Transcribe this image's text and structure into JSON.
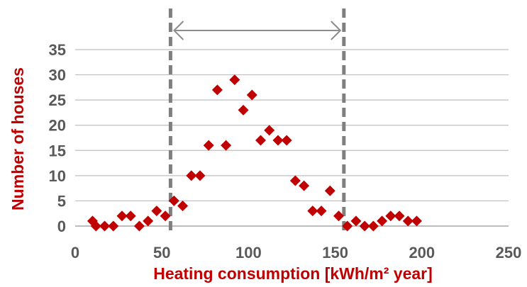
{
  "chart_data": {
    "type": "scatter",
    "title": "",
    "xlabel": "Heating consumption  [kWh/m² year]",
    "ylabel": "Number of houses",
    "xlim": [
      0,
      250
    ],
    "ylim": [
      0,
      35
    ],
    "x_ticks": [
      0,
      50,
      100,
      150,
      200,
      250
    ],
    "y_ticks": [
      0,
      5,
      10,
      15,
      20,
      25,
      30,
      35
    ],
    "grid": "horizontal",
    "legend": "none",
    "marker": "diamond",
    "marker_color": "#c00000",
    "points": [
      {
        "x": 10,
        "y": 1
      },
      {
        "x": 12,
        "y": 0
      },
      {
        "x": 17,
        "y": 0
      },
      {
        "x": 22,
        "y": 0
      },
      {
        "x": 27,
        "y": 2
      },
      {
        "x": 32,
        "y": 2
      },
      {
        "x": 37,
        "y": 0
      },
      {
        "x": 42,
        "y": 1
      },
      {
        "x": 47,
        "y": 3
      },
      {
        "x": 52,
        "y": 2
      },
      {
        "x": 57,
        "y": 5
      },
      {
        "x": 62,
        "y": 4
      },
      {
        "x": 67,
        "y": 10
      },
      {
        "x": 72,
        "y": 10
      },
      {
        "x": 77,
        "y": 16
      },
      {
        "x": 82,
        "y": 27
      },
      {
        "x": 87,
        "y": 16
      },
      {
        "x": 92,
        "y": 29
      },
      {
        "x": 97,
        "y": 23
      },
      {
        "x": 102,
        "y": 26
      },
      {
        "x": 107,
        "y": 17
      },
      {
        "x": 112,
        "y": 19
      },
      {
        "x": 117,
        "y": 17
      },
      {
        "x": 122,
        "y": 17
      },
      {
        "x": 127,
        "y": 9
      },
      {
        "x": 132,
        "y": 8
      },
      {
        "x": 137,
        "y": 3
      },
      {
        "x": 142,
        "y": 3
      },
      {
        "x": 147,
        "y": 7
      },
      {
        "x": 152,
        "y": 2
      },
      {
        "x": 157,
        "y": 0
      },
      {
        "x": 162,
        "y": 1
      },
      {
        "x": 167,
        "y": 0
      },
      {
        "x": 172,
        "y": 0
      },
      {
        "x": 177,
        "y": 1
      },
      {
        "x": 182,
        "y": 2
      },
      {
        "x": 187,
        "y": 2
      },
      {
        "x": 192,
        "y": 1
      },
      {
        "x": 197,
        "y": 1
      }
    ],
    "threshold_lines": {
      "x_values": [
        55,
        155
      ],
      "style": "dashed",
      "color": "#7f7f7f"
    },
    "range_arrow": {
      "from_x": 55,
      "to_x": 155,
      "style": "double-headed",
      "color": "#8c8c8c"
    }
  }
}
